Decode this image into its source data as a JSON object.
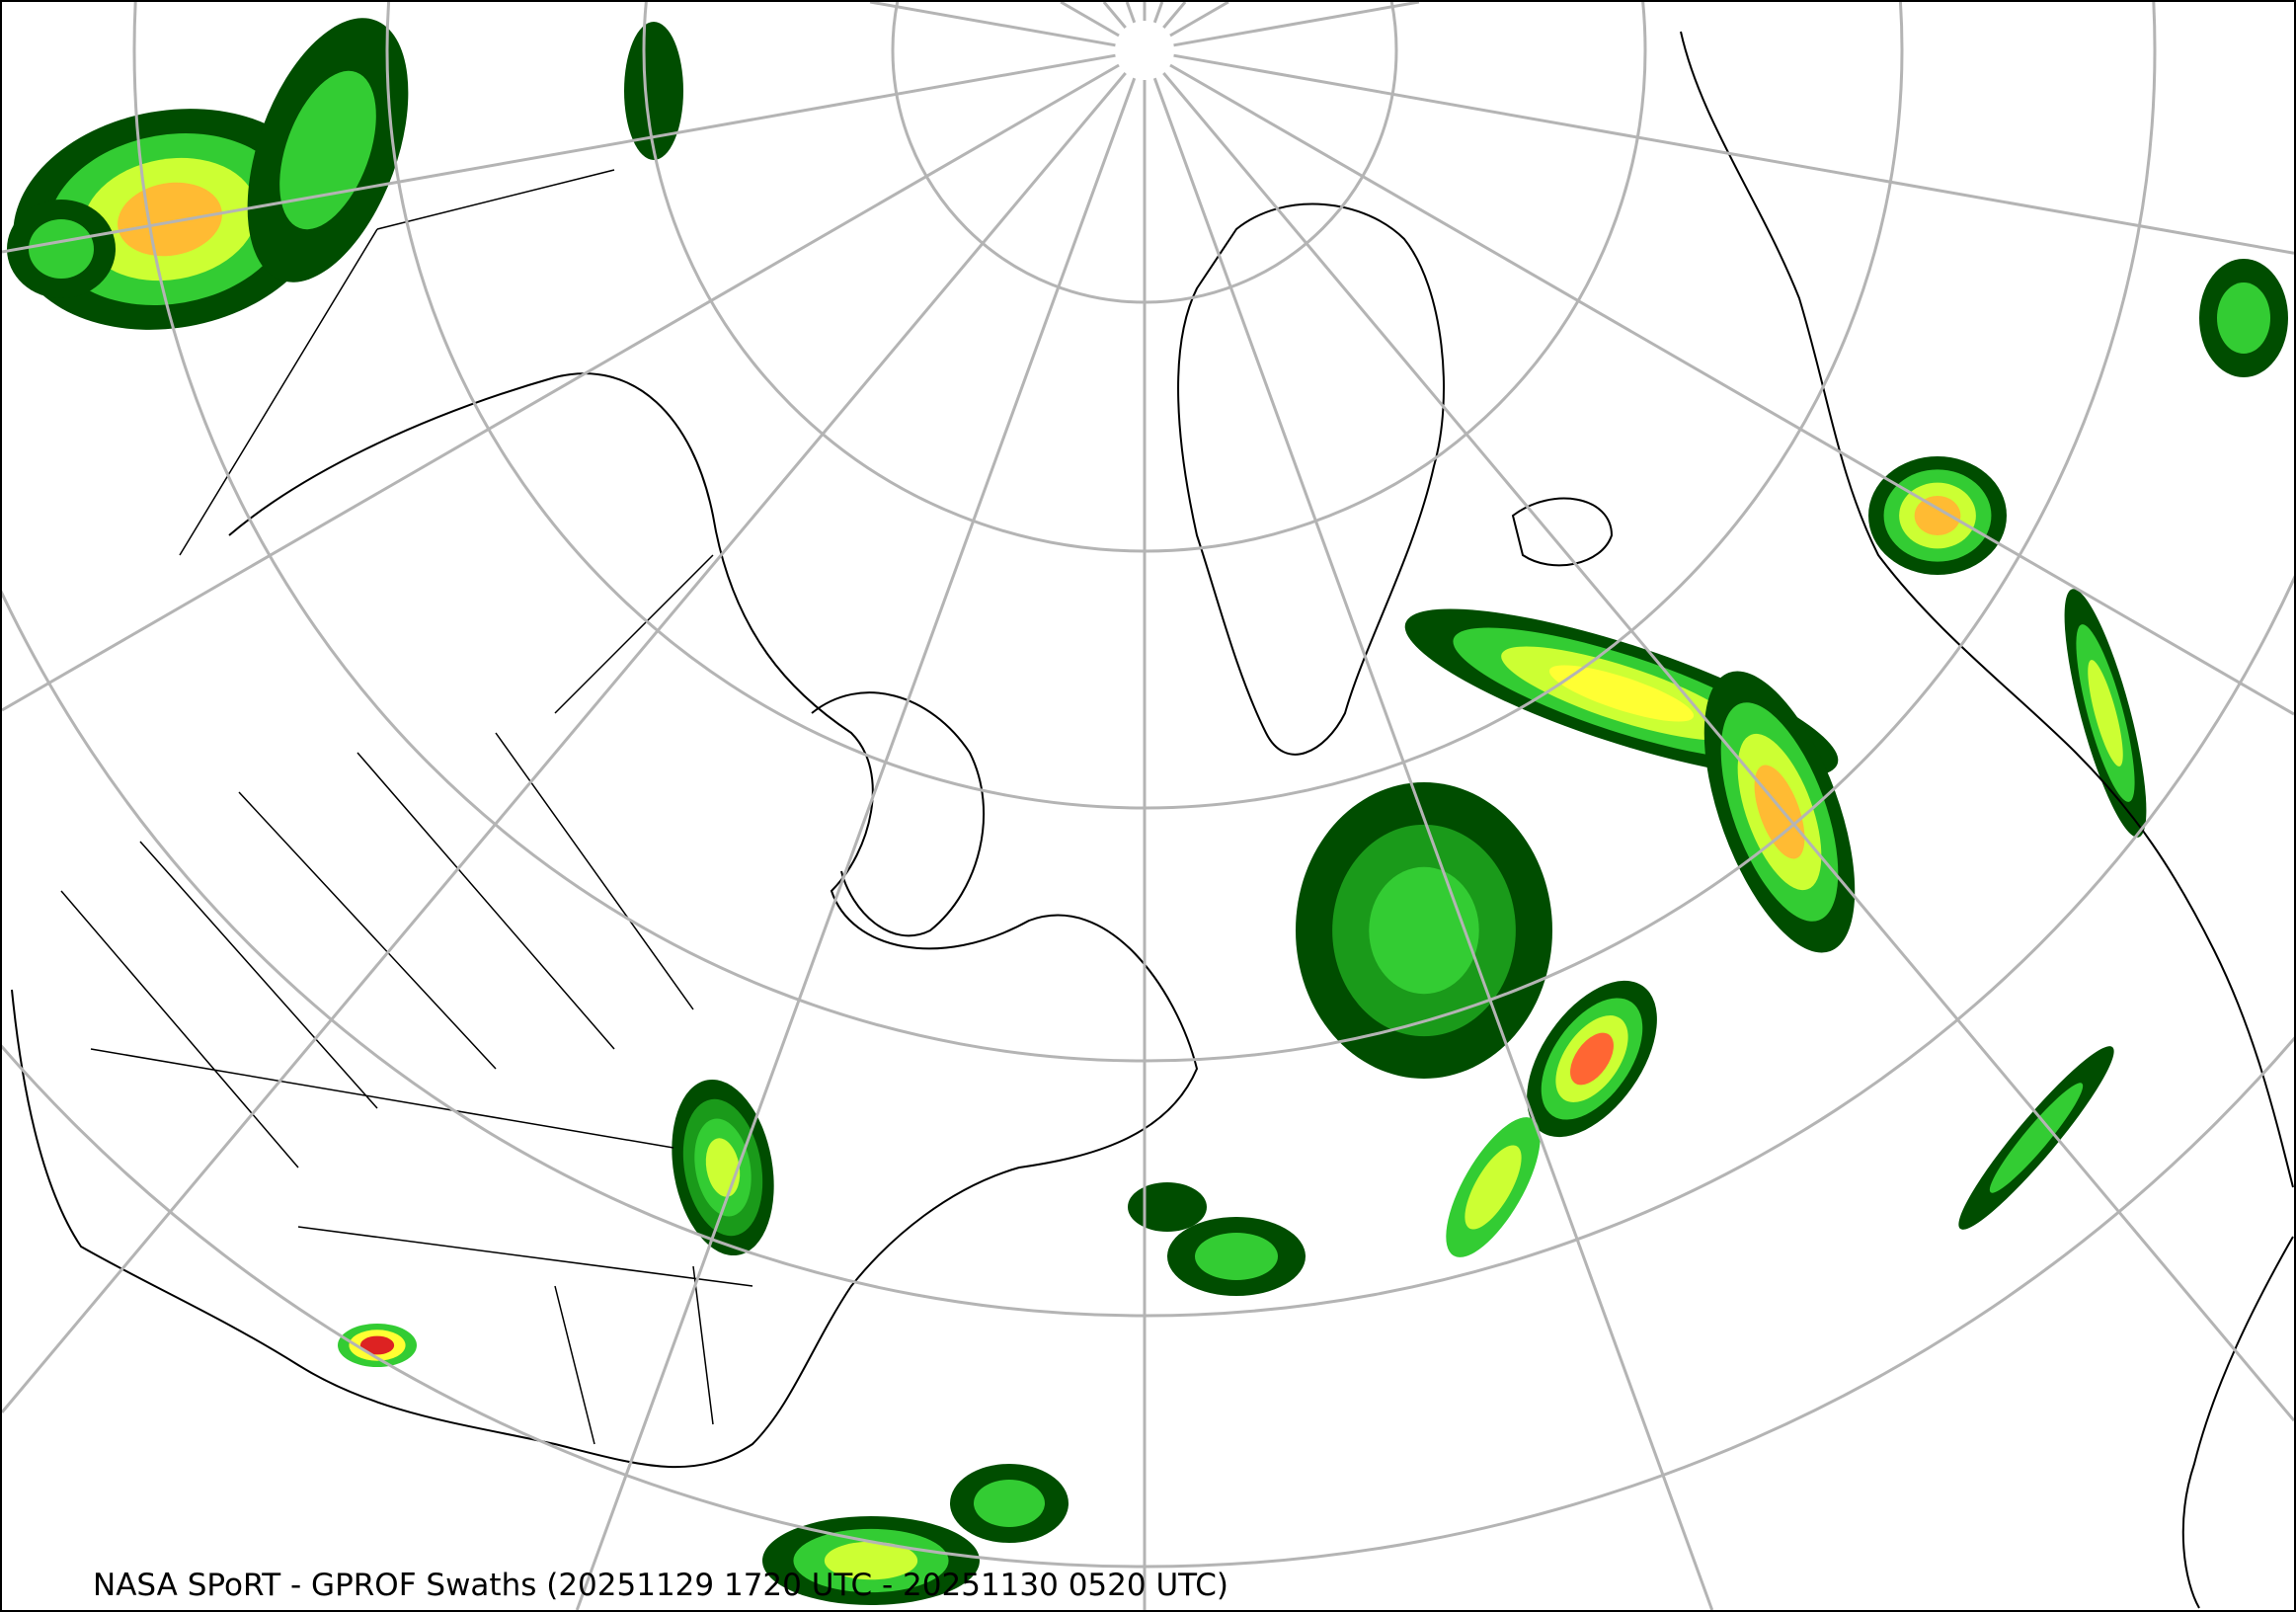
{
  "map": {
    "caption": "NASA SPoRT - GPROF Swaths (20251129 1720 UTC - 20251130 0520 UTC)",
    "projection": "polar stereographic",
    "precip_colors": [
      "#004d00",
      "#1a9a1a",
      "#33cc33",
      "#66ff33",
      "#ccff33",
      "#ffff33",
      "#ffbb33",
      "#ff6633",
      "#dd2222"
    ],
    "graticule_color": "#b4b4b4",
    "coastline_color": "#000000"
  }
}
